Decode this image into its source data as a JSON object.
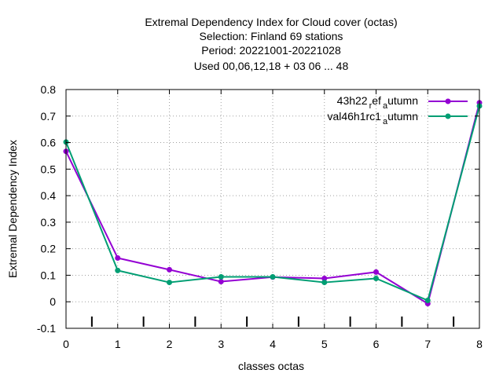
{
  "chart_data": {
    "type": "line",
    "title_lines": [
      "Extremal Dependency Index  for Cloud cover (octas)",
      "Selection: Finland     69 stations",
      "Period: 20221001-20221028",
      "Used  00,06,12,18  + 03 06 ... 48"
    ],
    "xlabel": "classes octas",
    "ylabel": "Extremal Dependency Index",
    "xlim": [
      0,
      8
    ],
    "ylim": [
      -0.1,
      0.8
    ],
    "x_ticks": [
      0,
      1,
      2,
      3,
      4,
      5,
      6,
      7,
      8
    ],
    "y_ticks": [
      -0.1,
      0,
      0.1,
      0.2,
      0.3,
      0.4,
      0.5,
      0.6,
      0.7,
      0.8
    ],
    "grid": true,
    "legend_position": "top-right",
    "class_separators": [
      0.5,
      1.5,
      2.5,
      3.5,
      4.5,
      5.5,
      6.5,
      7.5
    ],
    "series": [
      {
        "name": "43h22_ref_autumn",
        "label_main": "43h22",
        "label_sub1": "r",
        "label_mid": "ef",
        "label_sub2": "a",
        "label_end": "utumn",
        "color": "#9400d3",
        "x": [
          0,
          1,
          2,
          3,
          4,
          5,
          6,
          7,
          8
        ],
        "values": [
          0.567,
          0.165,
          0.121,
          0.076,
          0.093,
          0.088,
          0.112,
          -0.007,
          0.75
        ]
      },
      {
        "name": "val46h1rc1_autumn",
        "label_main": "val46h1rc1",
        "label_sub1": "a",
        "label_end": "utumn",
        "color": "#009e73",
        "x": [
          0,
          1,
          2,
          3,
          4,
          5,
          6,
          7,
          8
        ],
        "values": [
          0.602,
          0.118,
          0.073,
          0.094,
          0.094,
          0.073,
          0.088,
          0.005,
          0.738
        ]
      }
    ]
  }
}
